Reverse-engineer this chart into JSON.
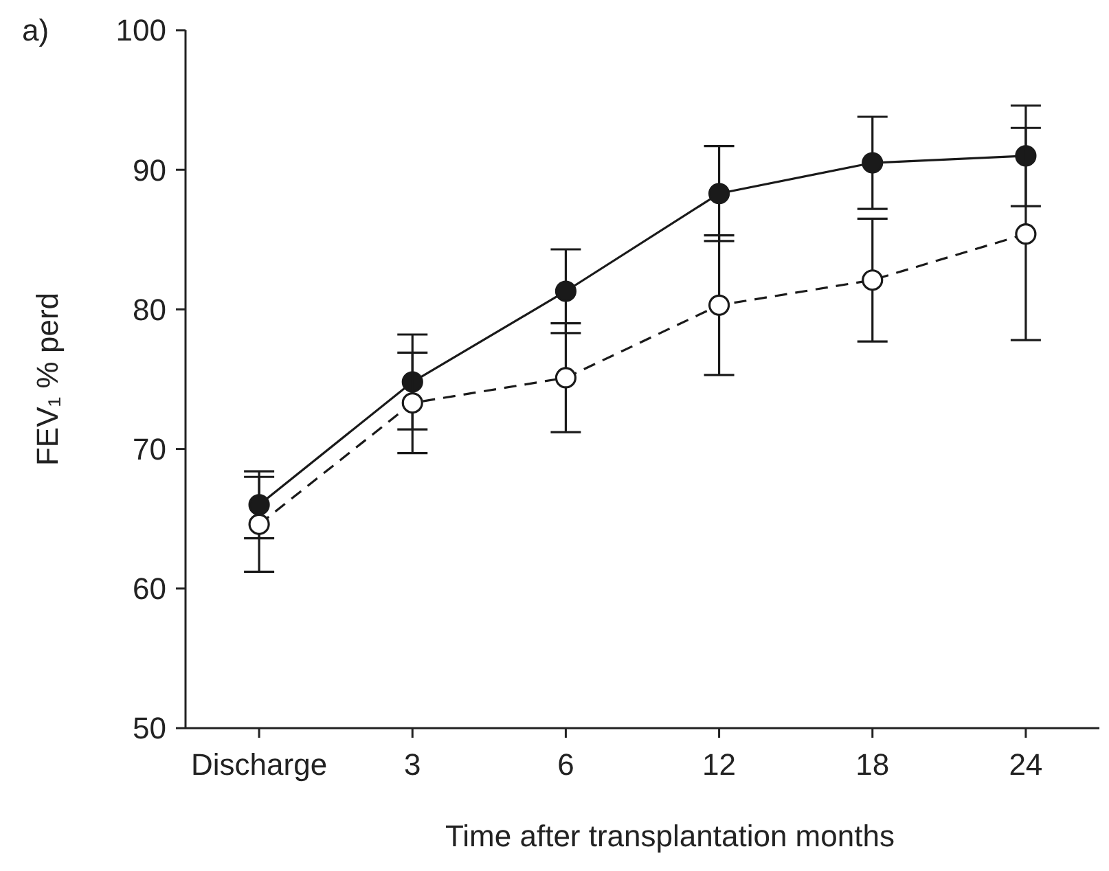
{
  "chart_data": {
    "type": "line",
    "ylabel": "FEV₁ % perd",
    "xlabel": "Time after transplantation months",
    "annotations": [
      "a)"
    ],
    "categories": [
      "Discharge",
      "3",
      "6",
      "12",
      "18",
      "24"
    ],
    "ylim": [
      50,
      100
    ],
    "yticks": [
      50,
      60,
      70,
      80,
      90,
      100
    ],
    "grid": false,
    "marker": "circle",
    "series": [
      {
        "color": "#1a1a1a",
        "line_style": "solid",
        "values": [
          66,
          74.8,
          81.3,
          88.3,
          90.5,
          91
        ],
        "errors": [
          2.4,
          3.4,
          3,
          3.4,
          3.3,
          3.6
        ]
      },
      {
        "color": "#1a1a1a",
        "line_style": "dashed",
        "values": [
          64.6,
          73.3,
          75.1,
          80.3,
          82.1,
          85.4
        ],
        "errors": [
          3.4,
          3.6,
          3.9,
          5,
          4.4,
          7.6
        ]
      }
    ]
  }
}
